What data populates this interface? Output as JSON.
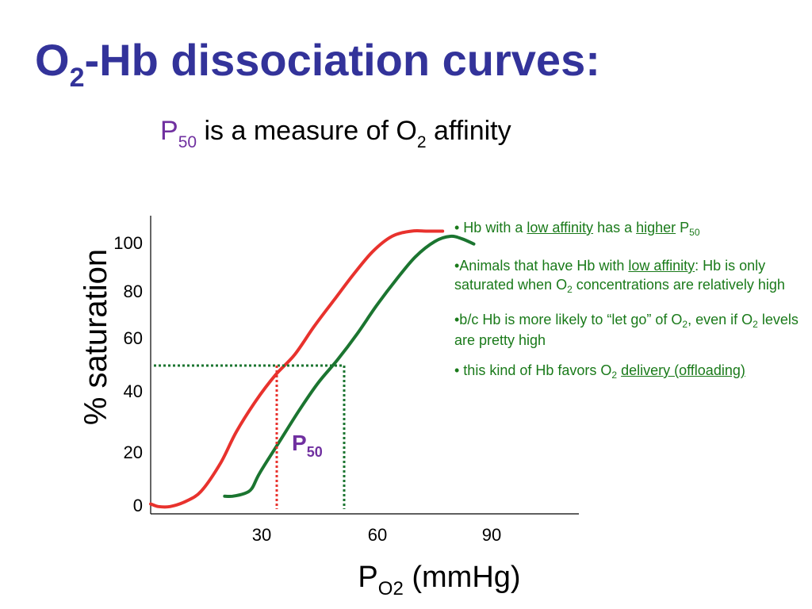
{
  "colors": {
    "title": "#33339a",
    "accent_purple": "#7030a0",
    "note_green": "#1a7a1a",
    "curve_red": "#e8322d",
    "curve_green": "#1b7530",
    "axis": "#000000"
  },
  "slide": {
    "title": {
      "part1": "O",
      "sub": "2",
      "part2": "-Hb dissociation curves:"
    },
    "subtitle": {
      "p": "P",
      "p_sub": "50",
      "mid": " is a measure of O",
      "o_sub": "2",
      "end": " affinity"
    }
  },
  "notes": {
    "n1": {
      "pre": "• Hb with a ",
      "u1": "low affinity",
      "mid": " has a ",
      "u2": "higher",
      "post": " P",
      "sub": "50"
    },
    "n2": {
      "pre": "•Animals that have Hb with ",
      "u1": "low affinity",
      "mid": ":  Hb is only saturated when O",
      "sub": "2",
      "post": " concentrations are relatively high"
    },
    "n3": {
      "pre": "•b/c Hb is more likely to “let go” of O",
      "sub1": "2",
      "mid": ", even if O",
      "sub2": "2",
      "post": " levels are pretty high"
    },
    "n4": {
      "pre": "• this kind of Hb favors O",
      "sub": "2",
      "sp": " ",
      "u1": "delivery (offloading)"
    }
  },
  "chart_data": {
    "type": "line",
    "xlabel": "P",
    "xlabel_sub": "O2",
    "xlabel_unit": " (mmHg)",
    "ylabel": "% saturation",
    "xlim": [
      0,
      110
    ],
    "ylim": [
      -2,
      112
    ],
    "x_ticks": [
      "30",
      "60",
      "90"
    ],
    "y_ticks": [
      "0",
      "20",
      "40",
      "60",
      "80",
      "100"
    ],
    "grid": false,
    "p50_label": "P",
    "p50_sub": "50",
    "p50_saturation": 50,
    "series": [
      {
        "color": "#e8322d",
        "x": [
          0,
          2,
          5,
          9,
          13,
          18,
          22,
          27,
          32,
          37,
          42,
          47,
          52,
          57,
          62,
          67,
          71,
          75
        ],
        "y": [
          0,
          -1,
          -1,
          1,
          5,
          16,
          28,
          40,
          50,
          58,
          69,
          79,
          89,
          98,
          104,
          106,
          106,
          106
        ]
      },
      {
        "color": "#1b7530",
        "x": [
          19,
          21,
          24,
          26,
          28,
          33,
          38,
          43,
          48,
          53,
          58,
          63,
          68,
          73,
          77,
          80,
          83
        ],
        "y": [
          3,
          3,
          4,
          6,
          12,
          24,
          36,
          47,
          56,
          66,
          77,
          87,
          96,
          102,
          104,
          103,
          101
        ]
      }
    ],
    "p50_x": [
      32,
      50
    ]
  }
}
